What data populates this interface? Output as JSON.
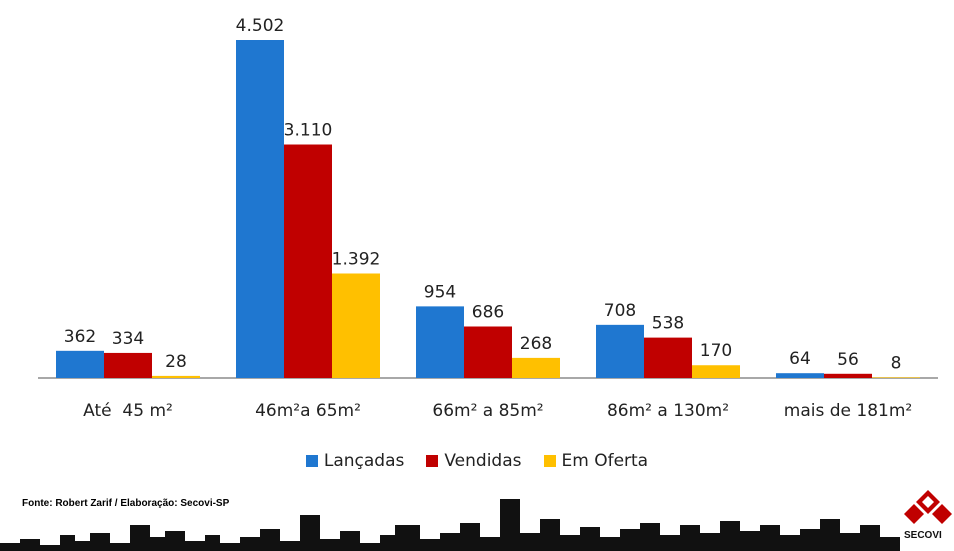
{
  "chart_data": {
    "type": "bar",
    "categories": [
      "Até  45 m²",
      "46m²a 65m²",
      "66m² a 85m²",
      "86m² a 130m²",
      "mais de 181m²"
    ],
    "series": [
      {
        "name": "Lançadas",
        "color": "#1f77d0",
        "values": [
          362,
          4502,
          954,
          708,
          64
        ],
        "labels": [
          "362",
          "4.502",
          "954",
          "708",
          "64"
        ]
      },
      {
        "name": "Vendidas",
        "color": "#c00000",
        "values": [
          334,
          3110,
          686,
          538,
          56
        ],
        "labels": [
          "334",
          "3.110",
          "686",
          "538",
          "56"
        ]
      },
      {
        "name": "Em Oferta",
        "color": "#ffc000",
        "values": [
          28,
          1392,
          268,
          170,
          8
        ],
        "labels": [
          "28",
          "1.392",
          "268",
          "170",
          "8"
        ]
      }
    ],
    "ylim": [
      0,
      4502
    ],
    "grid": false,
    "legend": "bottom"
  },
  "source": "Fonte: Robert Zarif / Elaboração: Secovi-SP",
  "logo": {
    "text": "SECOVI",
    "color": "#c00000"
  }
}
